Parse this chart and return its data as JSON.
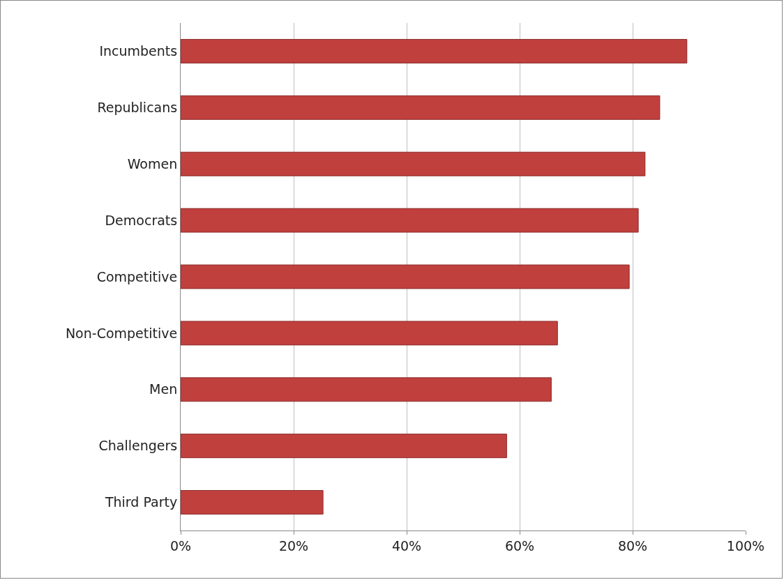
{
  "chart_data": {
    "type": "bar",
    "orientation": "horizontal",
    "categories": [
      "Incumbents",
      "Republicans",
      "Women",
      "Democrats",
      "Competitive",
      "Non-Competitive",
      "Men",
      "Challengers",
      "Third Party"
    ],
    "values": [
      89.6,
      84.8,
      82.2,
      81,
      79.4,
      66.7,
      65.6,
      57.7,
      25.2
    ],
    "color": "#c0403d",
    "xlim": [
      0,
      100
    ],
    "xticks": [
      {
        "value": 0,
        "label": "0%"
      },
      {
        "value": 20,
        "label": "20%"
      },
      {
        "value": 40,
        "label": "40%"
      },
      {
        "value": 60,
        "label": "60%"
      },
      {
        "value": 80,
        "label": "80%"
      },
      {
        "value": 100,
        "label": "100%"
      }
    ],
    "grid": "x"
  }
}
